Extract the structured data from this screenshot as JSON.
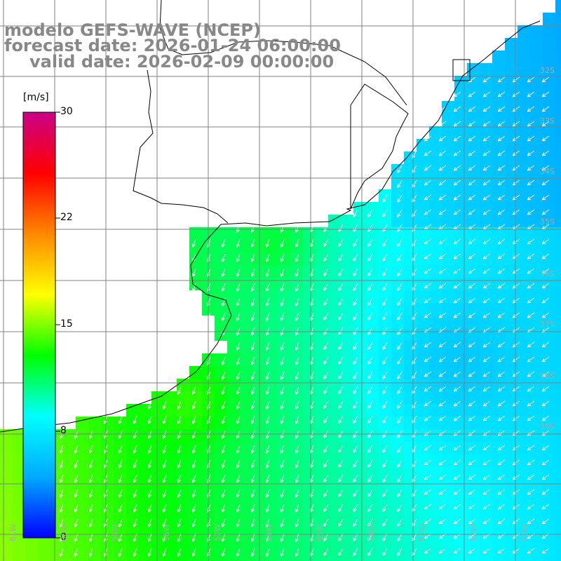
{
  "title": {
    "line1": "modelo GEFS-WAVE (NCEP)",
    "line2": "forecast date: 2026-01-24 06:00:00",
    "line3": "valid date: 2026-02-09 00:00:00"
  },
  "colorbar": {
    "unit": "[m/s]",
    "ticks": [
      "30",
      "22",
      "15",
      "8",
      "0"
    ],
    "stops": [
      "#0000ff",
      "#00aaff",
      "#00ffff",
      "#00ff00",
      "#ffff00",
      "#ff8800",
      "#ff0000",
      "#cc0088"
    ]
  },
  "lat_labels": [
    "32S",
    "33S",
    "34S",
    "35S",
    "36S",
    "37S",
    "38S",
    "39S"
  ],
  "lon_labels": [
    "61W",
    "60W",
    "59W",
    "58W",
    "57W",
    "56W",
    "55W",
    "54W",
    "53W",
    "52W",
    "51W"
  ],
  "colors": {
    "land": "#ffffff",
    "grid": "#808080",
    "coast": "#000000",
    "arrows": "#ffffff"
  }
}
